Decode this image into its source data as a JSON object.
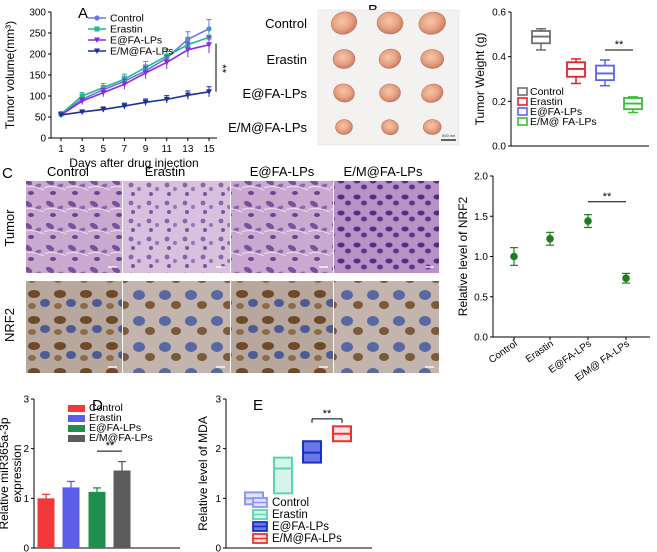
{
  "panels": {
    "A": "A",
    "B": "B",
    "C": "C",
    "D": "D",
    "E": "E"
  },
  "significance": "**",
  "scale_bar_label": "500 nm",
  "colors": {
    "control": "#6b74f0",
    "erastin": "#23b98c",
    "e_fa": "#8a2be2",
    "em_fa": "#1f2f9c",
    "box_control": "#6e6e6e",
    "box_erastin": "#e8202a",
    "box_e_fa": "#5a63ee",
    "box_em_fa": "#33c233",
    "nrf2_point": "#1f7d1f",
    "bar_control": "#f4373b",
    "bar_erastin": "#5b5ee8",
    "bar_e_fa": "#1f8f4e",
    "bar_em_fa": "#5c5c5c",
    "mda_control": "#8c95ef",
    "mda_erastin": "#57d7b0",
    "mda_e_fa": "#1a2fc4",
    "mda_em_fa": "#f03030"
  },
  "photo": {
    "row_labels": [
      "Control",
      "Erastin",
      "E@FA-LPs",
      "E/M@FA-LPs"
    ]
  },
  "histology": {
    "col_labels": [
      "Control",
      "Erastin",
      "E@FA-LPs",
      "E/M@FA-LPs"
    ],
    "row_labels": [
      "Tumor",
      "NRF2"
    ]
  },
  "chart_data": [
    {
      "id": "A",
      "type": "line",
      "title": "",
      "xlabel": "Days after drug injection",
      "ylabel": "Tumor volume(mm³)",
      "x": [
        1,
        3,
        5,
        7,
        9,
        11,
        13,
        15
      ],
      "ylim": [
        0,
        300
      ],
      "yticks": [
        0,
        50,
        100,
        150,
        200,
        250,
        300
      ],
      "series": [
        {
          "name": "Control",
          "values": [
            58,
            92,
            115,
            135,
            160,
            190,
            235,
            260
          ],
          "err": [
            5,
            8,
            10,
            12,
            14,
            16,
            18,
            22
          ]
        },
        {
          "name": "Erastin",
          "values": [
            57,
            100,
            120,
            140,
            168,
            195,
            222,
            240
          ],
          "err": [
            5,
            8,
            10,
            12,
            14,
            16,
            18,
            20
          ]
        },
        {
          "name": "E@FA-LPs",
          "values": [
            55,
            88,
            108,
            128,
            155,
            180,
            210,
            222
          ],
          "err": [
            5,
            8,
            10,
            12,
            14,
            16,
            18,
            20
          ]
        },
        {
          "name": "E/M@FA-LPs",
          "values": [
            55,
            62,
            68,
            76,
            85,
            92,
            102,
            110
          ],
          "err": [
            4,
            5,
            6,
            7,
            8,
            9,
            10,
            12
          ]
        }
      ]
    },
    {
      "id": "B",
      "type": "box",
      "xlabel": "",
      "ylabel": "Tumor Weight (g)",
      "ylim": [
        0,
        0.6
      ],
      "yticks": [
        0.0,
        0.2,
        0.4,
        0.6
      ],
      "groups": [
        {
          "name": "Control",
          "min": 0.43,
          "q1": 0.46,
          "median": 0.49,
          "q3": 0.515,
          "max": 0.525
        },
        {
          "name": "Erastin",
          "min": 0.28,
          "q1": 0.31,
          "median": 0.345,
          "q3": 0.375,
          "max": 0.39
        },
        {
          "name": "E@FA-LPs",
          "min": 0.27,
          "q1": 0.295,
          "median": 0.325,
          "q3": 0.36,
          "max": 0.385
        },
        {
          "name": "E/M@ FA-LPs",
          "min": 0.15,
          "q1": 0.165,
          "median": 0.19,
          "q3": 0.215,
          "max": 0.22
        }
      ]
    },
    {
      "id": "NRF2",
      "type": "scatter",
      "ylabel": "Relative level of NRF2",
      "ylim": [
        0,
        2.0
      ],
      "yticks": [
        0.0,
        0.5,
        1.0,
        1.5,
        2.0
      ],
      "categories": [
        "Control",
        "Erastin",
        "E@FA-LPs",
        "E/M@ FA-LPs"
      ],
      "values": [
        1.0,
        1.22,
        1.44,
        0.73
      ],
      "err": [
        0.11,
        0.08,
        0.08,
        0.06
      ]
    },
    {
      "id": "D",
      "type": "bar",
      "ylabel": "Relative  miR365a-3p\nexpression",
      "ylim": [
        0,
        3
      ],
      "yticks": [
        0,
        1,
        2,
        3
      ],
      "categories": [
        "Control",
        "Erastin",
        "E@FA-LPs",
        "E/M@FA-LPs"
      ],
      "values": [
        1.0,
        1.22,
        1.13,
        1.56
      ],
      "err": [
        0.08,
        0.12,
        0.08,
        0.18
      ]
    },
    {
      "id": "E",
      "type": "box",
      "ylabel": "Relative level of MDA",
      "ylim": [
        0,
        3
      ],
      "yticks": [
        0,
        1,
        2,
        3
      ],
      "groups": [
        {
          "name": "Control",
          "low": 0.88,
          "mid": 1.0,
          "high": 1.12
        },
        {
          "name": "Erastin",
          "low": 1.1,
          "mid": 1.6,
          "high": 1.82
        },
        {
          "name": "E@FA-LPs",
          "low": 1.72,
          "mid": 1.92,
          "high": 2.15
        },
        {
          "name": "E/M@FA-LPs",
          "low": 2.15,
          "mid": 2.3,
          "high": 2.45
        }
      ]
    }
  ]
}
